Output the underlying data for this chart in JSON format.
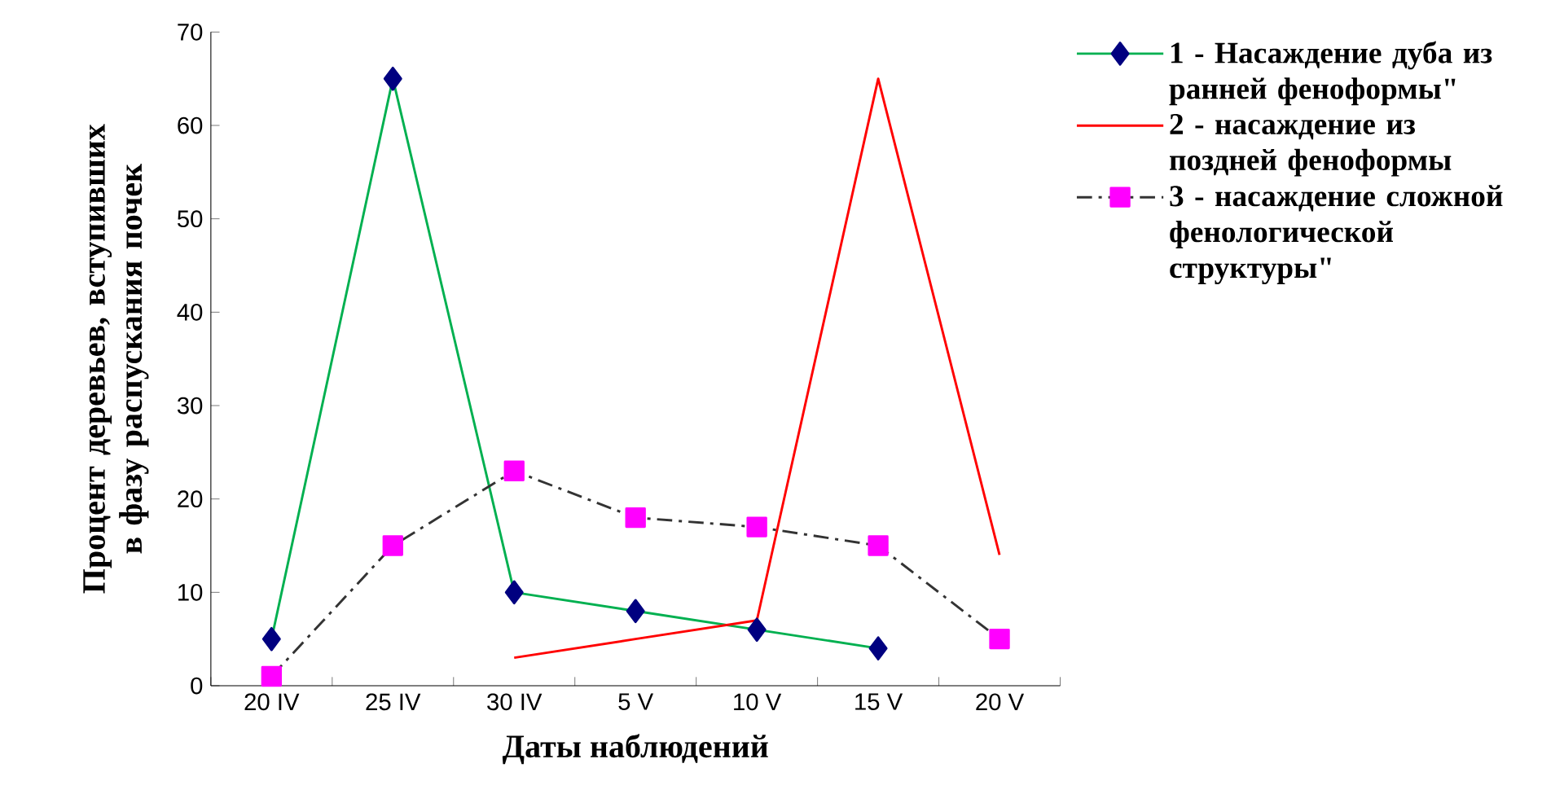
{
  "chart_data": {
    "type": "line",
    "xlabel": "Даты наблюдений",
    "ylabel": "Процент деревьев, вступивших в фазу распускания почек",
    "categories": [
      "20 IV",
      "25 IV",
      "30 IV",
      "5 V",
      "10 V",
      "15 V",
      "20 V"
    ],
    "ylim": [
      0,
      70
    ],
    "yticks": [
      0,
      10,
      20,
      30,
      40,
      50,
      60,
      70
    ],
    "legend": "right",
    "grid": false,
    "series": [
      {
        "name": "1 - Насаждение дуба из ранней феноформы\"",
        "color": "#00b050",
        "marker": "diamond",
        "line_style": "solid",
        "values": [
          5,
          65,
          10,
          8,
          6,
          4,
          null
        ]
      },
      {
        "name": "2 - насаждение из поздней феноформы",
        "color": "#ff0000",
        "marker": "none",
        "line_style": "solid",
        "values": [
          null,
          null,
          3,
          5,
          7,
          65,
          14
        ]
      },
      {
        "name": "3 - насаждение сложной фенологической структуры\"",
        "color": "#ff00ff",
        "marker": "square",
        "line_style": "dashed",
        "values": [
          1,
          15,
          23,
          18,
          17,
          15,
          5
        ]
      }
    ]
  }
}
